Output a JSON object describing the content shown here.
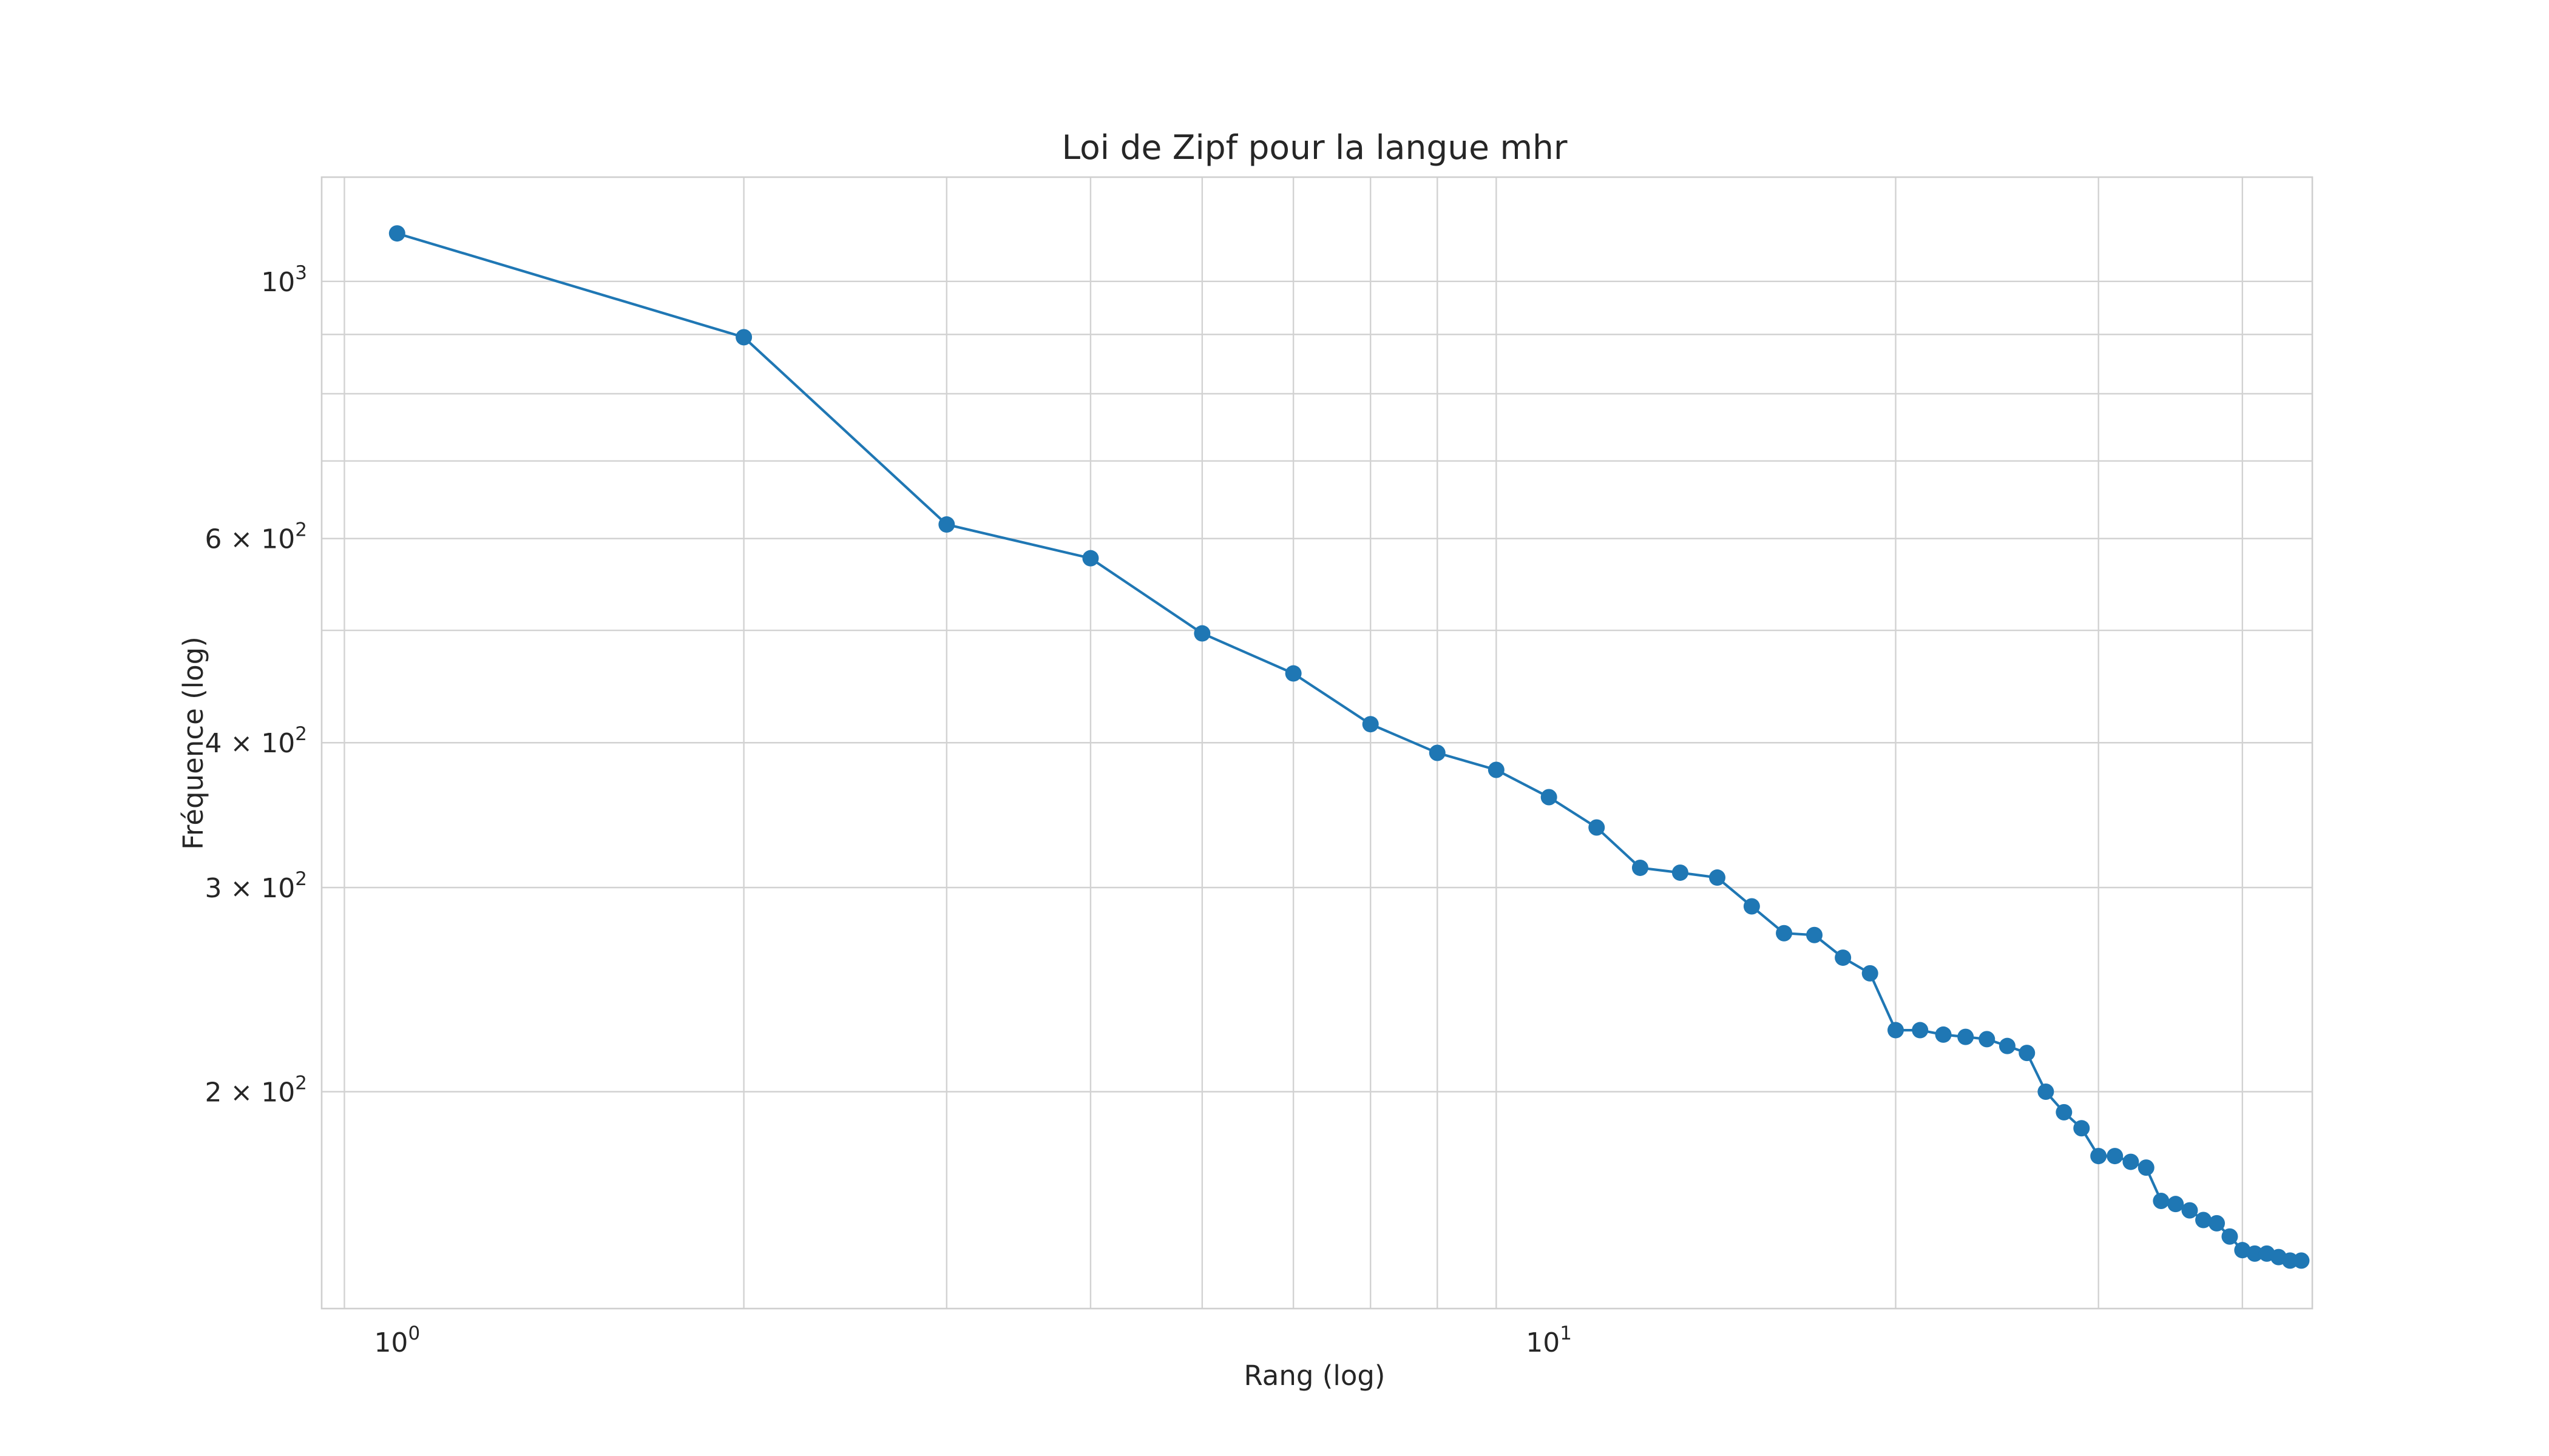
{
  "chart_data": {
    "type": "line",
    "title": "Loi de Zipf pour la langue mhr",
    "xlabel": "Rang (log)",
    "ylabel": "Fréquence (log)",
    "xscale": "log",
    "yscale": "log",
    "xlim": [
      0.86,
      46
    ],
    "ylim": [
      130,
      1230
    ],
    "grid": true,
    "legend": "none",
    "color": "#1f77b4",
    "marker": "circle",
    "x_ticks": [
      {
        "value": 1,
        "base": "10",
        "exp": "0"
      },
      {
        "value": 10,
        "base": "10",
        "exp": "1"
      }
    ],
    "y_ticks": [
      {
        "value": 1000,
        "base": "10",
        "exp": "3"
      },
      {
        "value": 600,
        "base": "6 × 10",
        "exp": "2"
      },
      {
        "value": 400,
        "base": "4 × 10",
        "exp": "2"
      },
      {
        "value": 300,
        "base": "3 × 10",
        "exp": "2"
      },
      {
        "value": 200,
        "base": "2 × 10",
        "exp": "2"
      }
    ],
    "series": [
      {
        "x": [
          1,
          2,
          3,
          4,
          5,
          6,
          7,
          8,
          9,
          10,
          11,
          12,
          13,
          14,
          15,
          16,
          17,
          18,
          19,
          20,
          21,
          22,
          23,
          24,
          25,
          26,
          27,
          28,
          29,
          30,
          31,
          32,
          33,
          34,
          35,
          36,
          37,
          38,
          39,
          40,
          41,
          42,
          43,
          44,
          45
        ],
        "y": [
          1100,
          895,
          617,
          577,
          497,
          459,
          415,
          392,
          379,
          359,
          338,
          312,
          309,
          306,
          289,
          274,
          273,
          261,
          253,
          226,
          226,
          224,
          223,
          222,
          219,
          216,
          200,
          192,
          186,
          176,
          176,
          174,
          172,
          161,
          160,
          158,
          155,
          154,
          150,
          146,
          145,
          145,
          144,
          143,
          143
        ]
      }
    ]
  }
}
